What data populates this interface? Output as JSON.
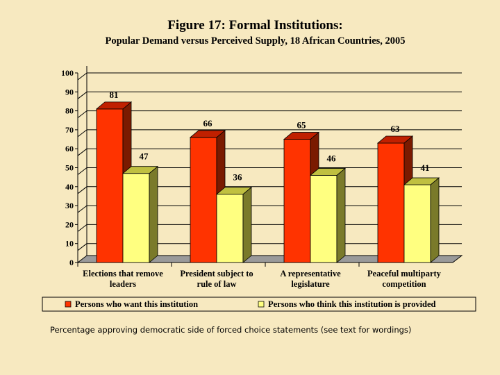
{
  "title": "Figure 17:  Formal Institutions:",
  "subtitle": "Popular Demand versus Perceived Supply, 18 African Countries, 2005",
  "caption": "Percentage approving democratic side of forced choice statements (see text for wordings)",
  "colors": {
    "background": "#f7e9c0",
    "series_want": "#ff3300",
    "series_provided": "#ffff80"
  },
  "chart_data": {
    "type": "bar",
    "title": "Figure 17:  Formal Institutions:",
    "subtitle": "Popular Demand versus Perceived Supply, 18 African Countries, 2005",
    "categories": [
      [
        "Elections that remove",
        "leaders"
      ],
      [
        "President subject to",
        "rule of law"
      ],
      [
        "A representative",
        "legislature"
      ],
      [
        "Peaceful multiparty",
        "competition"
      ]
    ],
    "series": [
      {
        "name": "Persons who want this institution",
        "values": [
          81,
          66,
          65,
          63
        ],
        "color": "#ff3300"
      },
      {
        "name": "Persons who think this institution is provided",
        "values": [
          47,
          36,
          46,
          41
        ],
        "color": "#ffff80"
      }
    ],
    "ylim": [
      0,
      100
    ],
    "yticks": [
      0,
      10,
      20,
      30,
      40,
      50,
      60,
      70,
      80,
      90,
      100
    ],
    "grid": true,
    "legend_position": "bottom",
    "xlabel": "",
    "ylabel": ""
  }
}
